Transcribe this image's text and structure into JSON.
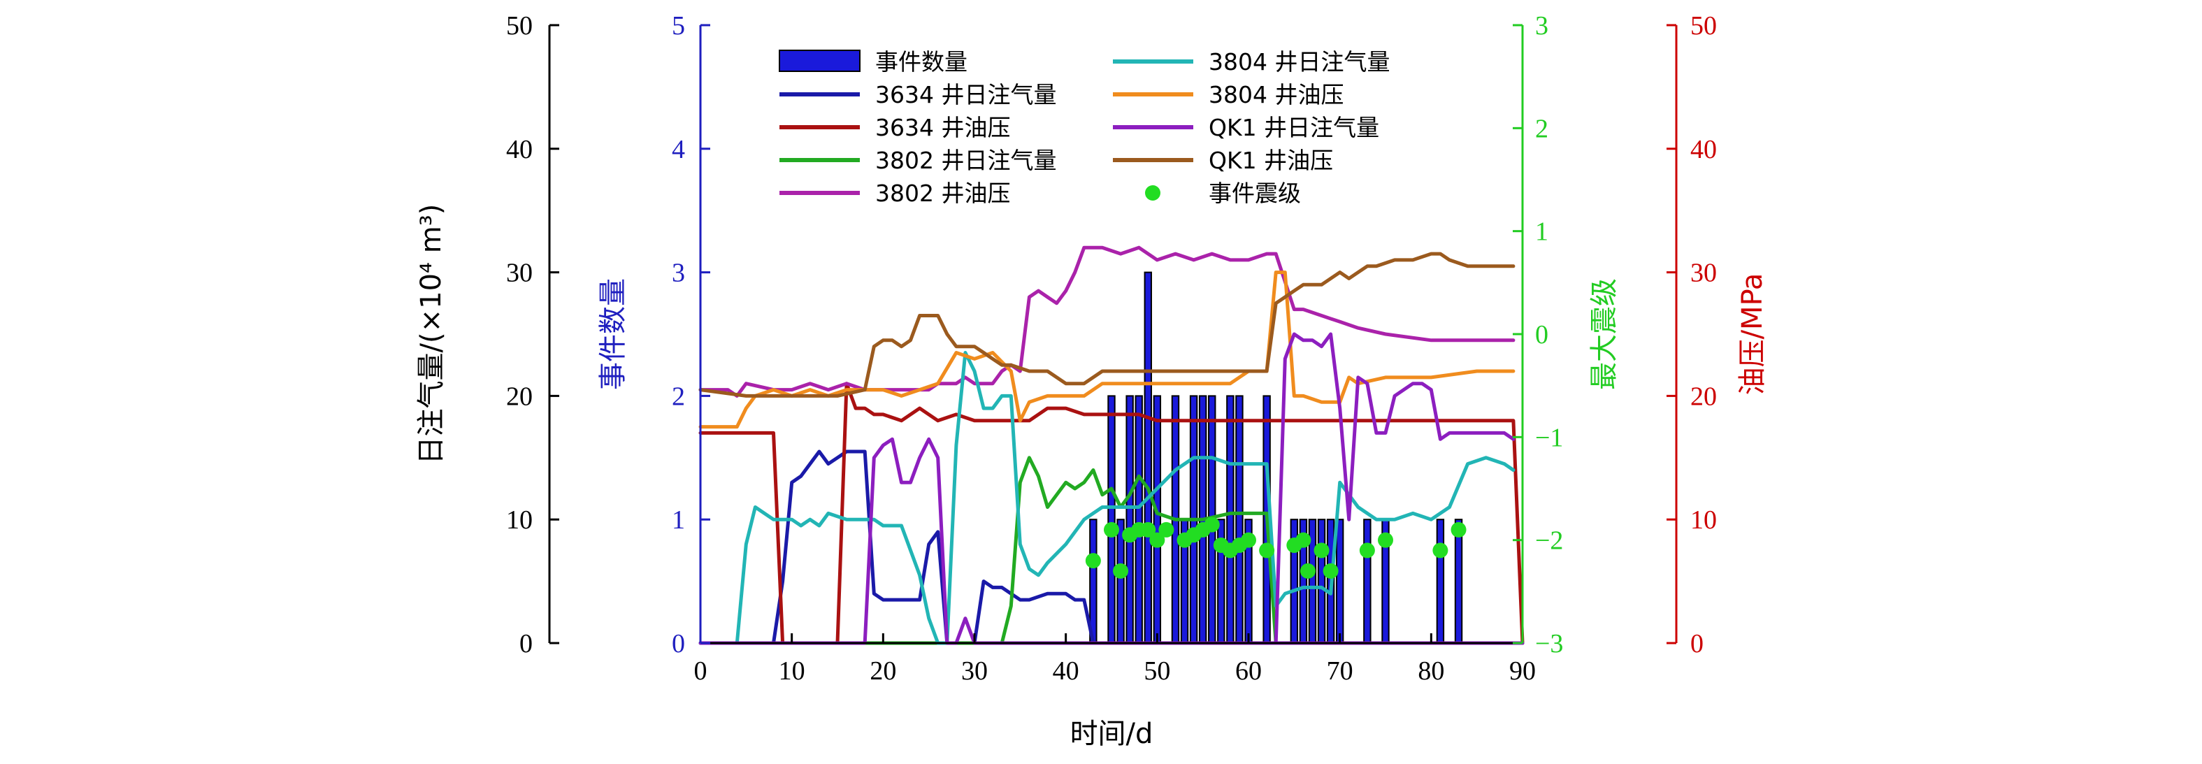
{
  "chart_data": {
    "type": "bar+line+scatter",
    "xlabel": "时间/d",
    "xlim": [
      0,
      90
    ],
    "xticks": [
      "0",
      "10",
      "20",
      "30",
      "40",
      "50",
      "60",
      "70",
      "80",
      "90"
    ],
    "axes": {
      "left1": {
        "label": "日注气量/(×10⁴ m³)",
        "ylim": [
          0,
          50
        ],
        "ticks": [
          "0",
          "10",
          "20",
          "30",
          "40",
          "50"
        ],
        "color": "#000000"
      },
      "left2": {
        "label": "事件数量",
        "ylim": [
          0,
          5
        ],
        "ticks": [
          "0",
          "1",
          "2",
          "3",
          "4",
          "5"
        ],
        "color": "#1f1fbf"
      },
      "right1": {
        "label": "最大震级",
        "ylim": [
          -3,
          3
        ],
        "ticks": [
          "−3",
          "−2",
          "−1",
          "0",
          "1",
          "2",
          "3"
        ],
        "color": "#22cc22"
      },
      "right2": {
        "label": "油压/MPa",
        "ylim": [
          0,
          50
        ],
        "ticks": [
          "0",
          "10",
          "20",
          "30",
          "40",
          "50"
        ],
        "color": "#cc0000"
      }
    },
    "legend": {
      "placement": "top",
      "entries": [
        {
          "key": "bars",
          "label": "事件数量"
        },
        {
          "key": "g3634",
          "label": "3634 井日注气量"
        },
        {
          "key": "p3634",
          "label": "3634 井油压"
        },
        {
          "key": "g3802",
          "label": "3802 井日注气量"
        },
        {
          "key": "p3802",
          "label": "3802 井油压"
        },
        {
          "key": "g3804",
          "label": "3804 井日注气量"
        },
        {
          "key": "p3804",
          "label": "3804 井油压"
        },
        {
          "key": "gQK1",
          "label": "QK1 井日注气量"
        },
        {
          "key": "pQK1",
          "label": "QK1 井油压"
        },
        {
          "key": "mag",
          "label": "事件震级"
        }
      ]
    },
    "bars": {
      "color": "#1a1adb",
      "x": [
        43,
        45,
        46,
        47,
        48,
        49,
        50,
        52,
        53,
        54,
        55,
        56,
        57,
        58,
        59,
        60,
        62,
        65,
        66,
        67,
        68,
        69,
        70,
        73,
        75,
        81,
        83
      ],
      "values": [
        1,
        2,
        1,
        2,
        2,
        3,
        2,
        2,
        1,
        2,
        2,
        2,
        1,
        2,
        2,
        1,
        2,
        1,
        1,
        1,
        1,
        1,
        1,
        1,
        1,
        1,
        1
      ]
    },
    "series": [
      {
        "key": "g3634",
        "axis": "left1",
        "color": "#1a1aa8",
        "x": [
          0,
          6,
          8,
          9,
          10,
          11,
          12,
          13,
          14,
          15,
          16,
          17,
          18,
          19,
          20,
          22,
          24,
          25,
          26,
          27,
          28,
          29,
          30,
          31,
          32,
          33,
          34,
          35,
          36,
          38,
          40,
          41,
          42,
          43,
          44,
          45,
          46,
          47,
          48,
          49,
          50,
          90
        ],
        "values": [
          0,
          0,
          0,
          5,
          13,
          13.5,
          14.5,
          15.5,
          14.5,
          15,
          15.5,
          15.5,
          15.5,
          4,
          3.5,
          3.5,
          3.5,
          8,
          9,
          0,
          0,
          0,
          0,
          5,
          4.5,
          4.5,
          4,
          3.5,
          3.5,
          4,
          4,
          3.5,
          3.5,
          0,
          0,
          0,
          0,
          0,
          0,
          0,
          0,
          0
        ]
      },
      {
        "key": "p3634",
        "axis": "right2",
        "color": "#aa1111",
        "x": [
          0,
          4,
          8,
          9,
          10,
          14,
          15,
          16,
          17,
          18,
          19,
          20,
          22,
          24,
          26,
          28,
          30,
          32,
          34,
          36,
          38,
          40,
          42,
          44,
          46,
          48,
          50,
          55,
          60,
          65,
          70,
          75,
          80,
          85,
          89,
          90
        ],
        "values": [
          17,
          17,
          17,
          0,
          0,
          0,
          0,
          21,
          19,
          19,
          18.5,
          18.5,
          18,
          19,
          18,
          18.5,
          18,
          18,
          18,
          18,
          19,
          19,
          18.5,
          18.5,
          18.5,
          18.5,
          18,
          18,
          18,
          18,
          18,
          18,
          18,
          18,
          18,
          0
        ]
      },
      {
        "key": "g3802",
        "axis": "left1",
        "color": "#22aa22",
        "x": [
          0,
          33,
          34,
          35,
          36,
          37,
          38,
          39,
          40,
          41,
          42,
          43,
          44,
          45,
          46,
          47,
          48,
          49,
          50,
          52,
          55,
          58,
          60,
          62,
          63,
          90
        ],
        "values": [
          0,
          0,
          3,
          13,
          15,
          13.5,
          11,
          12,
          13,
          12.5,
          13,
          14,
          12,
          12.5,
          11,
          12,
          13.5,
          12.5,
          10.5,
          10,
          10,
          10.5,
          10.5,
          10.5,
          0,
          0
        ]
      },
      {
        "key": "p3802",
        "axis": "right2",
        "color": "#aa22aa",
        "x": [
          0,
          3,
          4,
          5,
          8,
          10,
          12,
          14,
          16,
          18,
          19,
          20,
          21,
          22,
          23,
          24,
          25,
          26,
          27,
          28,
          29,
          30,
          31,
          32,
          33,
          34,
          35,
          36,
          37,
          38,
          39,
          40,
          41,
          42,
          44,
          46,
          48,
          50,
          52,
          54,
          56,
          58,
          60,
          62,
          63,
          65,
          66,
          68,
          70,
          72,
          75,
          80,
          85,
          89
        ],
        "values": [
          20.5,
          20.5,
          20,
          21,
          20.5,
          20.5,
          21,
          20.5,
          21,
          20.5,
          20.5,
          20.5,
          20.5,
          20.5,
          20.5,
          20.5,
          20.5,
          21,
          21,
          21,
          21.5,
          21,
          21,
          21,
          22,
          22.5,
          22,
          28,
          28.5,
          28,
          27.5,
          28.5,
          30,
          32,
          32,
          31.5,
          32,
          31,
          31.5,
          31,
          31.5,
          31,
          31,
          31.5,
          31.5,
          27,
          27,
          26.5,
          26,
          25.5,
          25,
          24.5,
          24.5,
          24.5
        ]
      },
      {
        "key": "g3804",
        "axis": "left1",
        "color": "#22b5b5",
        "x": [
          0,
          3,
          4,
          5,
          6,
          8,
          10,
          11,
          12,
          13,
          14,
          16,
          18,
          19,
          20,
          22,
          24,
          25,
          26,
          27,
          28,
          29,
          30,
          31,
          32,
          33,
          34,
          35,
          36,
          37,
          38,
          40,
          42,
          44,
          46,
          48,
          50,
          52,
          54,
          56,
          58,
          60,
          62,
          63,
          64,
          66,
          68,
          69,
          70,
          72,
          74,
          76,
          78,
          80,
          82,
          84,
          86,
          88,
          89
        ],
        "values": [
          0,
          0,
          0,
          8,
          11,
          10,
          10,
          9.5,
          10,
          9.5,
          10.5,
          10,
          10,
          10,
          9.5,
          9.5,
          5.5,
          2,
          0,
          0,
          16,
          23.5,
          22,
          19,
          19,
          20,
          20,
          8,
          6,
          5.5,
          6.5,
          8,
          10,
          11,
          11,
          11,
          12.5,
          14,
          15,
          15,
          14.5,
          14.5,
          14.5,
          3,
          4,
          4.5,
          4.5,
          4,
          13,
          11,
          10,
          10,
          10.5,
          10,
          11,
          14.5,
          15,
          14.5,
          14
        ]
      },
      {
        "key": "p3804",
        "axis": "right2",
        "color": "#f08c1e",
        "x": [
          0,
          2,
          4,
          5,
          6,
          8,
          10,
          12,
          14,
          16,
          18,
          20,
          22,
          24,
          26,
          28,
          30,
          32,
          34,
          35,
          36,
          38,
          40,
          42,
          44,
          46,
          48,
          50,
          52,
          54,
          56,
          58,
          60,
          62,
          63,
          64,
          65,
          66,
          68,
          70,
          71,
          72,
          75,
          80,
          85,
          89
        ],
        "values": [
          17.5,
          17.5,
          17.5,
          19,
          20,
          20.5,
          20,
          20.5,
          20,
          20.5,
          20.5,
          20.5,
          20,
          20.5,
          21,
          23.5,
          23,
          23.5,
          22,
          18,
          19.5,
          20,
          20,
          20,
          21,
          21,
          21,
          21,
          21,
          21,
          21,
          21,
          22,
          22,
          30,
          30,
          20,
          20,
          19.5,
          19.5,
          21.5,
          21,
          21.5,
          21.5,
          22,
          22
        ]
      },
      {
        "key": "gQK1",
        "axis": "left1",
        "color": "#8c1ebf",
        "x": [
          0,
          18,
          19,
          20,
          21,
          22,
          23,
          24,
          25,
          26,
          27,
          28,
          29,
          30,
          31,
          90
        ],
        "values": [
          0,
          0,
          15,
          16,
          16.5,
          13,
          13,
          15,
          16.5,
          15,
          0,
          0,
          2,
          0,
          0,
          0
        ]
      },
      {
        "key": "gQK1b",
        "axis": "left1",
        "color": "#8c1ebf",
        "x": [
          62,
          63,
          64,
          65,
          66,
          67,
          68,
          69,
          70,
          71,
          72,
          73,
          74,
          75,
          76,
          77,
          78,
          79,
          80,
          81,
          82,
          83,
          84,
          85,
          86,
          87,
          88,
          89
        ],
        "values": [
          0,
          0,
          23,
          25,
          24.5,
          24.5,
          24,
          25,
          19,
          10,
          21.5,
          21,
          17,
          17,
          20,
          20.5,
          21,
          21,
          20.5,
          16.5,
          17,
          17,
          17,
          17,
          17,
          17,
          17,
          16.5
        ]
      },
      {
        "key": "pQK1",
        "axis": "right2",
        "color": "#9b5a1e",
        "x": [
          0,
          5,
          10,
          15,
          18,
          19,
          20,
          21,
          22,
          23,
          24,
          25,
          26,
          27,
          28,
          29,
          30,
          31,
          32,
          33,
          34,
          36,
          38,
          40,
          42,
          44,
          46,
          48,
          50,
          54,
          58,
          62,
          63,
          64,
          65,
          66,
          67,
          68,
          69,
          70,
          71,
          72,
          73,
          74,
          76,
          78,
          80,
          81,
          82,
          84,
          86,
          89
        ],
        "values": [
          20.5,
          20,
          20,
          20,
          20.5,
          24,
          24.5,
          24.5,
          24,
          24.5,
          26.5,
          26.5,
          26.5,
          25,
          24,
          24,
          24,
          23.5,
          23,
          22.5,
          22.5,
          22,
          22,
          21,
          21,
          22,
          22,
          22,
          22,
          22,
          22,
          22,
          27.5,
          28,
          28.5,
          29,
          29,
          29,
          29.5,
          30,
          29.5,
          30,
          30.5,
          30.5,
          31,
          31,
          31.5,
          31.5,
          31,
          30.5,
          30.5,
          30.5
        ]
      }
    ],
    "magnitudes": {
      "color": "#22dd22",
      "x": [
        43,
        45,
        46,
        47,
        48,
        49,
        50,
        51,
        53,
        54,
        55,
        56,
        57,
        58,
        59,
        60,
        62,
        65,
        66,
        66.5,
        68,
        69,
        73,
        75,
        81,
        83
      ],
      "values": [
        -2.2,
        -1.9,
        -2.3,
        -1.95,
        -1.9,
        -1.9,
        -2.0,
        -1.9,
        -2.0,
        -1.95,
        -1.9,
        -1.85,
        -2.05,
        -2.1,
        -2.05,
        -2.0,
        -2.1,
        -2.05,
        -2.0,
        -2.3,
        -2.1,
        -2.3,
        -2.1,
        -2.0,
        -2.1,
        -1.9
      ]
    }
  }
}
